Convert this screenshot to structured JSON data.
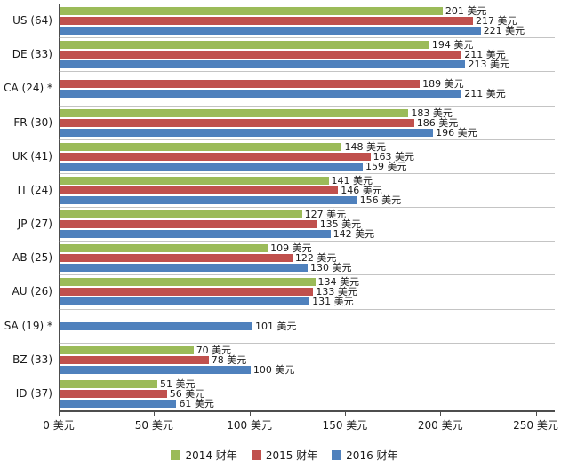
{
  "chart_data": {
    "type": "bar",
    "orientation": "horizontal",
    "title": "",
    "xlabel": "",
    "ylabel": "",
    "xlim": [
      0,
      260
    ],
    "grid": "category-separators-only",
    "legend_position": "bottom",
    "value_suffix": "美元",
    "categories": [
      "US (64)",
      "DE (33)",
      "CA (24) *",
      "FR (30)",
      "UK (41)",
      "IT (24)",
      "JP (27)",
      "AB (25)",
      "AU (26)",
      "SA (19) *",
      "BZ (33)",
      "ID (37)"
    ],
    "series": [
      {
        "name": "2014 财年",
        "color": "#9bbb59",
        "values": [
          201,
          194,
          null,
          183,
          148,
          141,
          127,
          109,
          134,
          null,
          70,
          51
        ]
      },
      {
        "name": "2015 财年",
        "color": "#c0504d",
        "values": [
          217,
          211,
          189,
          186,
          163,
          146,
          135,
          122,
          133,
          null,
          78,
          56
        ]
      },
      {
        "name": "2016 财年",
        "color": "#4f81bd",
        "values": [
          221,
          213,
          211,
          196,
          159,
          156,
          142,
          130,
          131,
          101,
          100,
          61
        ]
      }
    ],
    "x_ticks": [
      "0 美元",
      "50 美元",
      "100 美元",
      "150 美元",
      "200 美元",
      "250 美元"
    ],
    "x_tick_values": [
      0,
      50,
      100,
      150,
      200,
      250
    ]
  }
}
